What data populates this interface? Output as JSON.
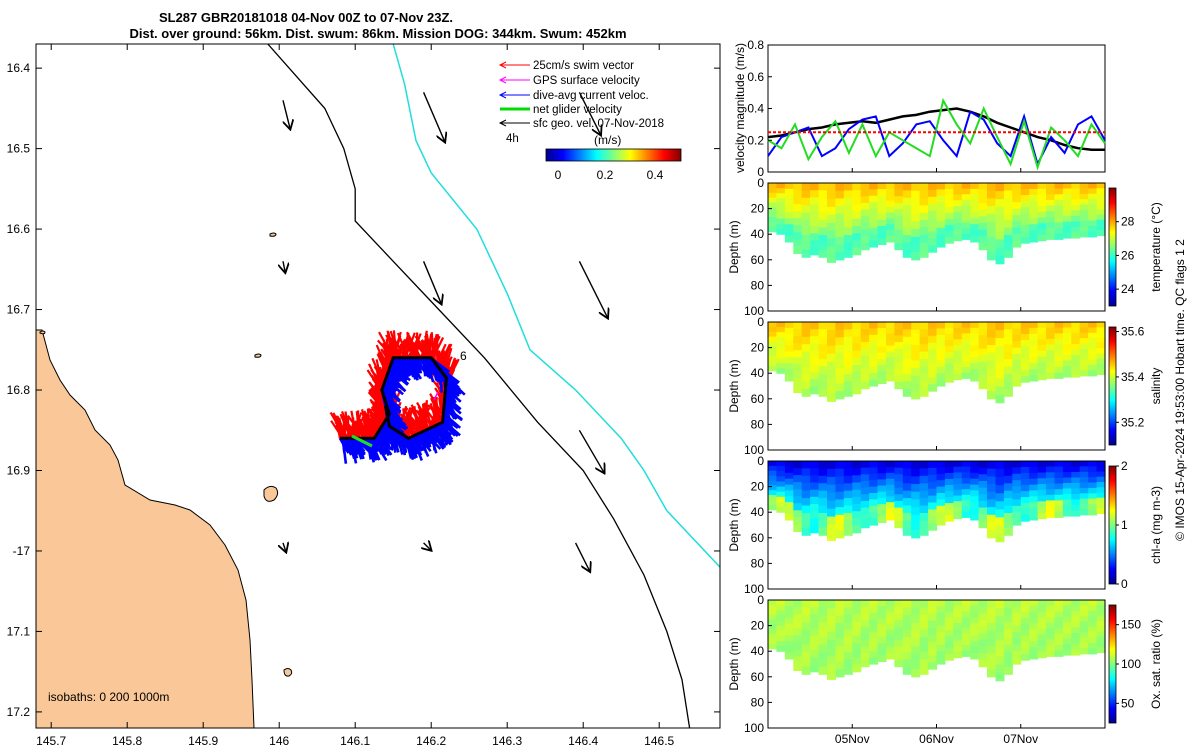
{
  "chart_data": [
    {
      "type": "map",
      "title": [
        "SL287 GBR20181018 04-Nov 00Z to 07-Nov 23Z.",
        "Dist. over ground: 56km. Dist. swum: 86km. Mission DOG: 344km. Swum: 452km"
      ],
      "xlim": [
        145.68,
        146.58
      ],
      "ylim": [
        17.22,
        16.37
      ],
      "xticks": [
        145.7,
        145.8,
        145.9,
        146,
        146.1,
        146.2,
        146.3,
        146.4,
        146.5
      ],
      "xtick_labels": [
        "145.7",
        "145.8",
        "145.9",
        "146",
        "146.1",
        "146.2",
        "146.3",
        "146.4",
        "146.5"
      ],
      "yticks": [
        16.4,
        16.5,
        16.6,
        16.7,
        16.8,
        16.9,
        17,
        17.1,
        17.2
      ],
      "ytick_labels": [
        "16.4",
        "16.5",
        "16.6",
        "16.7",
        "16.8",
        "16.9",
        "-17",
        "17.1",
        "17.2"
      ],
      "legend": [
        {
          "label": "25cm/s swim vector",
          "color": "#ff0000"
        },
        {
          "label": "GPS surface velocity",
          "color": "#ff00ff"
        },
        {
          "label": "dive-avg current veloc.",
          "color": "#0000ff"
        },
        {
          "label": "net glider velocity",
          "color": "#00dd00"
        },
        {
          "label": "sfc geo. vel. 07-Nov-2018",
          "color": "#000000"
        }
      ],
      "legend_extra": "4h",
      "colorbar": {
        "label": "(m/s)",
        "ticks": [
          "0",
          "0.2",
          "0.4"
        ],
        "range": [
          0,
          0.5
        ]
      },
      "isobaths_label": "isobaths: 0   200  1000m",
      "isobath_200m": [
        [
          145.985,
          16.37
        ],
        [
          146.06,
          16.45
        ],
        [
          146.085,
          16.5
        ],
        [
          146.1,
          16.55
        ],
        [
          146.1,
          16.59
        ],
        [
          146.15,
          16.64
        ],
        [
          146.2,
          16.69
        ],
        [
          146.27,
          16.76
        ],
        [
          146.34,
          16.84
        ],
        [
          146.4,
          16.9
        ],
        [
          146.44,
          16.96
        ],
        [
          146.48,
          17.03
        ],
        [
          146.51,
          17.1
        ],
        [
          146.53,
          17.16
        ],
        [
          146.54,
          17.22
        ]
      ],
      "isobath_1000m": [
        [
          146.15,
          16.37
        ],
        [
          146.165,
          16.42
        ],
        [
          146.18,
          16.49
        ],
        [
          146.2,
          16.53
        ],
        [
          146.26,
          16.6
        ],
        [
          146.3,
          16.68
        ],
        [
          146.33,
          16.75
        ],
        [
          146.39,
          16.8
        ],
        [
          146.45,
          16.86
        ],
        [
          146.48,
          16.9
        ],
        [
          146.51,
          16.95
        ],
        [
          146.58,
          17.02
        ]
      ],
      "glider_track": [
        [
          146.08,
          16.86
        ],
        [
          146.125,
          16.86
        ],
        [
          146.145,
          16.83
        ],
        [
          146.135,
          16.8
        ],
        [
          146.15,
          16.76
        ],
        [
          146.2,
          16.76
        ],
        [
          146.22,
          16.785
        ],
        [
          146.215,
          16.84
        ],
        [
          146.17,
          16.86
        ],
        [
          146.145,
          16.845
        ],
        [
          146.14,
          16.82
        ]
      ],
      "track_label": "6",
      "geo_vectors": [
        {
          "lon": 146.005,
          "lat": 16.44,
          "u": 0.01,
          "v": -0.04
        },
        {
          "lon": 146.19,
          "lat": 16.43,
          "u": 0.03,
          "v": -0.07
        },
        {
          "lon": 146.395,
          "lat": 16.43,
          "u": 0.03,
          "v": -0.06
        },
        {
          "lon": 146.19,
          "lat": 16.64,
          "u": 0.025,
          "v": -0.06
        },
        {
          "lon": 146.395,
          "lat": 16.64,
          "u": 0.04,
          "v": -0.08
        },
        {
          "lon": 146.395,
          "lat": 16.85,
          "u": 0.035,
          "v": -0.06
        },
        {
          "lon": 146.19,
          "lat": 16.99,
          "u": 0.01,
          "v": -0.01
        },
        {
          "lon": 146.39,
          "lat": 16.99,
          "u": 0.02,
          "v": -0.04
        },
        {
          "lon": 146.005,
          "lat": 16.99,
          "u": 0.004,
          "v": -0.012
        },
        {
          "lon": 146.005,
          "lat": 16.64,
          "u": 0.003,
          "v": -0.015
        }
      ]
    },
    {
      "type": "line",
      "ylabel": "velocity magnitude (m/s)",
      "ylim": [
        0,
        0.8
      ],
      "yticks": [
        "0",
        "0.2",
        "0.4",
        "0.6",
        "0.8"
      ],
      "series": [
        {
          "name": "geo",
          "color": "#000000",
          "values": [
            0.22,
            0.23,
            0.25,
            0.27,
            0.28,
            0.3,
            0.31,
            0.32,
            0.31,
            0.33,
            0.35,
            0.36,
            0.38,
            0.39,
            0.4,
            0.38,
            0.35,
            0.31,
            0.28,
            0.25,
            0.22,
            0.2,
            0.17,
            0.15,
            0.14,
            0.14
          ]
        },
        {
          "name": "dive-avg",
          "color": "#0000ff",
          "values": [
            0.1,
            0.22,
            0.25,
            0.28,
            0.1,
            0.15,
            0.27,
            0.33,
            0.35,
            0.1,
            0.18,
            0.3,
            0.32,
            0.2,
            0.1,
            0.38,
            0.33,
            0.18,
            0.1,
            0.35,
            0.05,
            0.22,
            0.12,
            0.3,
            0.35,
            0.2
          ]
        },
        {
          "name": "net glider",
          "color": "#22dd22",
          "values": [
            0.2,
            0.15,
            0.3,
            0.08,
            0.22,
            0.32,
            0.12,
            0.3,
            0.1,
            0.25,
            0.2,
            0.15,
            0.1,
            0.45,
            0.3,
            0.18,
            0.4,
            0.22,
            0.05,
            0.32,
            0.03,
            0.28,
            0.2,
            0.1,
            0.3,
            0.18
          ]
        },
        {
          "name": "swim",
          "color": "#ff0000",
          "values": [
            0.25,
            0.25,
            0.25,
            0.25,
            0.25,
            0.25,
            0.25,
            0.25,
            0.25,
            0.25,
            0.25,
            0.25,
            0.25,
            0.25,
            0.25,
            0.25,
            0.25,
            0.25,
            0.25,
            0.25,
            0.25,
            0.25,
            0.25,
            0.25,
            0.25,
            0.25
          ]
        }
      ]
    },
    {
      "type": "heatmap",
      "name": "temperature",
      "ylabel": "Depth (m)",
      "ylim": [
        0,
        100
      ],
      "yticks": [
        "0",
        "20",
        "40",
        "60",
        "80",
        "100"
      ],
      "colorbar_label": "temperature (°C)",
      "colorbar_ticks": [
        "24",
        "26",
        "28"
      ],
      "crange": [
        23,
        30
      ],
      "surface_value": 27.8,
      "deep_value": 26.0
    },
    {
      "type": "heatmap",
      "name": "salinity",
      "ylabel": "Depth (m)",
      "ylim": [
        0,
        100
      ],
      "yticks": [
        "0",
        "20",
        "40",
        "60",
        "80",
        "100"
      ],
      "colorbar_label": "salinity",
      "colorbar_ticks": [
        "35.2",
        "35.4",
        "35.6"
      ],
      "crange": [
        35.1,
        35.62
      ],
      "surface_value": 35.45,
      "deep_value": 35.38
    },
    {
      "type": "heatmap",
      "name": "chl-a",
      "ylabel": "Depth (m)",
      "ylim": [
        0,
        100
      ],
      "yticks": [
        "0",
        "20",
        "40",
        "60",
        "80",
        "100"
      ],
      "colorbar_label": "chl-a (mg m-3)",
      "colorbar_ticks": [
        "0",
        "1",
        "2"
      ],
      "crange": [
        0,
        2
      ],
      "surface_value": 0.2,
      "deep_value": 1.0
    },
    {
      "type": "heatmap",
      "name": "oxygen",
      "ylabel": "Depth (m)",
      "ylim": [
        0,
        100
      ],
      "yticks": [
        "0",
        "20",
        "40",
        "60",
        "80",
        "100"
      ],
      "colorbar_label": "Ox. sat. ratio (%)",
      "colorbar_ticks": [
        "50",
        "100",
        "150"
      ],
      "crange": [
        25,
        175
      ],
      "surface_value": 108,
      "deep_value": 105,
      "xtick_labels": [
        "05Nov",
        "06Nov",
        "07Nov"
      ],
      "time_range_days": [
        4,
        8
      ],
      "time_ticks_days": [
        5,
        6,
        7
      ]
    }
  ],
  "bottom_profile_m": [
    38,
    40,
    46,
    55,
    58,
    56,
    58,
    62,
    60,
    58,
    56,
    52,
    50,
    48,
    46,
    52,
    58,
    60,
    58,
    54,
    50,
    47,
    45,
    44,
    46,
    52,
    60,
    63,
    58,
    50,
    47,
    46,
    45,
    44,
    44,
    43,
    43,
    42,
    42,
    41
  ],
  "footer": "© IMOS 15-Apr-2024 19:53:00 Hobart time. QC flags 1  2"
}
